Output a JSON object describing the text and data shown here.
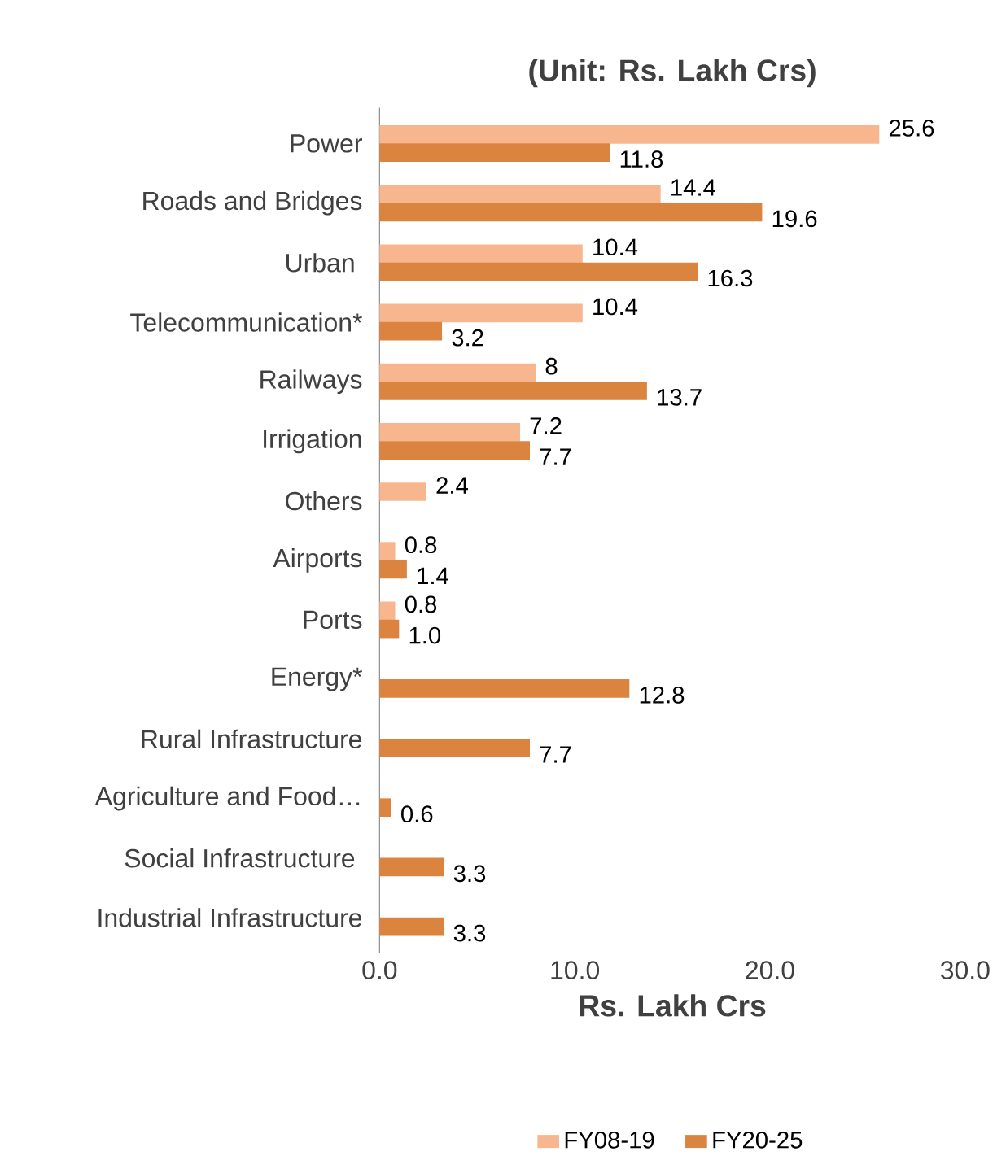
{
  "chart_data": {
    "type": "bar",
    "orientation": "horizontal",
    "title": "(Unit: Rs. Lakh Crs)",
    "xlabel": "Rs. Lakh Crs",
    "categories": [
      "Power",
      "Roads and Bridges",
      "Urban ",
      "Telecommunication*",
      "Railways",
      "Irrigation",
      "Others",
      "Airports",
      "Ports",
      "Energy*",
      "Rural Infrastructure",
      "Agriculture and Food…",
      "Social Infrastructure ",
      "Industrial Infrastructure"
    ],
    "series": [
      {
        "name": "FY08-19",
        "color": "#f8b68f",
        "values": [
          25.6,
          14.4,
          10.4,
          10.4,
          8,
          7.2,
          2.4,
          0.8,
          0.8,
          null,
          null,
          null,
          null,
          null
        ],
        "value_labels": [
          "25.6",
          "14.4",
          "10.4",
          "10.4",
          "8",
          "7.2",
          "2.4",
          "0.8",
          "0.8",
          null,
          null,
          null,
          null,
          null
        ]
      },
      {
        "name": "FY20-25",
        "color": "#db8440",
        "values": [
          11.8,
          19.6,
          16.3,
          3.2,
          13.7,
          7.7,
          null,
          1.4,
          1.0,
          12.8,
          7.7,
          0.6,
          3.3,
          3.3
        ],
        "value_labels": [
          "11.8",
          "19.6",
          "16.3",
          "3.2",
          "13.7",
          "7.7",
          null,
          "1.4",
          "1.0",
          "12.8",
          "7.7",
          "0.6",
          "3.3",
          "3.3"
        ]
      }
    ],
    "xlim": [
      0,
      30
    ],
    "xticks": [
      {
        "value": 0,
        "label": "0.0"
      },
      {
        "value": 10,
        "label": "10.0"
      },
      {
        "value": 20,
        "label": "20.0"
      },
      {
        "value": 30,
        "label": "30.0"
      }
    ],
    "legend": "bottom",
    "grid": false
  }
}
